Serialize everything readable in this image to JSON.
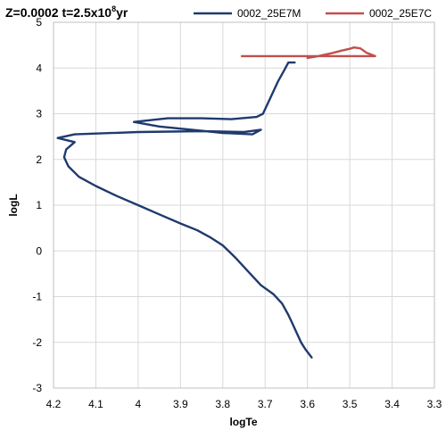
{
  "chart_data": {
    "type": "line",
    "title_main": "Z=0.0002 t=2.5x10",
    "title_exp": "8",
    "title_unit": "yr",
    "xlabel": "logTe",
    "ylabel": "logL",
    "xlim": [
      4.2,
      3.3
    ],
    "ylim": [
      -3,
      5
    ],
    "x_ticks": [
      "4.2",
      "4.1",
      "4",
      "3.9",
      "3.8",
      "3.7",
      "3.6",
      "3.5",
      "3.4",
      "3.3"
    ],
    "y_ticks": [
      "5",
      "4",
      "3",
      "2",
      "1",
      "0",
      "-1",
      "-2",
      "-3"
    ],
    "grid": "horizontal and vertical",
    "legend_position": "top",
    "series": [
      {
        "name": "0002_25E7M",
        "color": "#1f3a6e",
        "points": [
          [
            3.59,
            -2.33
          ],
          [
            3.605,
            -2.15
          ],
          [
            3.615,
            -2.0
          ],
          [
            3.625,
            -1.8
          ],
          [
            3.635,
            -1.6
          ],
          [
            3.645,
            -1.4
          ],
          [
            3.66,
            -1.15
          ],
          [
            3.68,
            -0.95
          ],
          [
            3.71,
            -0.75
          ],
          [
            3.74,
            -0.45
          ],
          [
            3.77,
            -0.15
          ],
          [
            3.8,
            0.12
          ],
          [
            3.83,
            0.3
          ],
          [
            3.86,
            0.45
          ],
          [
            3.9,
            0.6
          ],
          [
            3.95,
            0.8
          ],
          [
            4.0,
            1.0
          ],
          [
            4.05,
            1.2
          ],
          [
            4.1,
            1.42
          ],
          [
            4.14,
            1.62
          ],
          [
            4.165,
            1.85
          ],
          [
            4.175,
            2.05
          ],
          [
            4.17,
            2.22
          ],
          [
            4.15,
            2.38
          ],
          [
            4.19,
            2.47
          ],
          [
            4.15,
            2.55
          ],
          [
            4.0,
            2.6
          ],
          [
            3.85,
            2.62
          ],
          [
            3.75,
            2.6
          ],
          [
            3.71,
            2.65
          ],
          [
            3.73,
            2.55
          ],
          [
            3.8,
            2.58
          ],
          [
            3.95,
            2.72
          ],
          [
            4.01,
            2.82
          ],
          [
            3.93,
            2.9
          ],
          [
            3.85,
            2.9
          ],
          [
            3.78,
            2.88
          ],
          [
            3.72,
            2.93
          ],
          [
            3.705,
            3.0
          ],
          [
            3.69,
            3.3
          ],
          [
            3.67,
            3.7
          ],
          [
            3.655,
            3.95
          ],
          [
            3.645,
            4.12
          ],
          [
            3.63,
            4.12
          ]
        ]
      },
      {
        "name": "0002_25E7C",
        "color": "#c0504d",
        "points": [
          [
            3.755,
            4.26
          ],
          [
            3.45,
            4.26
          ],
          [
            3.44,
            4.26
          ],
          [
            3.46,
            4.33
          ],
          [
            3.475,
            4.43
          ],
          [
            3.49,
            4.45
          ],
          [
            3.5,
            4.42
          ],
          [
            3.52,
            4.38
          ],
          [
            3.54,
            4.33
          ],
          [
            3.56,
            4.29
          ],
          [
            3.58,
            4.25
          ],
          [
            3.6,
            4.22
          ]
        ]
      }
    ]
  }
}
